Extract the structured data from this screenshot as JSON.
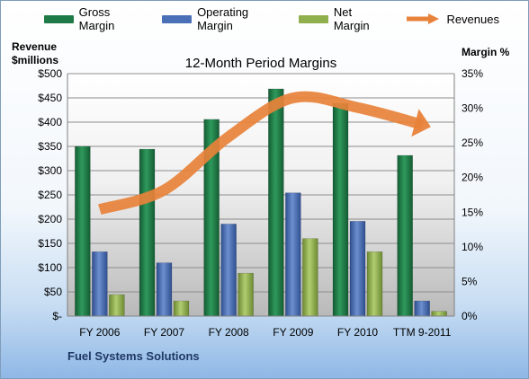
{
  "legend": {
    "gross": "Gross Margin",
    "operating": "Operating Margin",
    "net": "Net Margin",
    "revenues": "Revenues"
  },
  "axis_titles": {
    "left_line1": "Revenue",
    "left_line2": "$millions",
    "right": "Margin %"
  },
  "footer": {
    "company": "Fuel Systems Solutions"
  },
  "colors": {
    "gross": "#1e7a46",
    "operating": "#4a70b8",
    "net": "#8fb04c",
    "revenues": "#e8823a"
  },
  "chart_data": {
    "type": "bar",
    "title": "12-Month Period Margins",
    "categories": [
      "FY 2006",
      "FY 2007",
      "FY 2008",
      "FY 2009",
      "FY 2010",
      "TTM 9-2011"
    ],
    "y_left": {
      "label": "Revenue $millions",
      "ylim": [
        0,
        500
      ],
      "ticks": [
        "$-",
        "$50",
        "$100",
        "$150",
        "$200",
        "$250",
        "$300",
        "$350",
        "$400",
        "$450",
        "$500"
      ]
    },
    "y_right": {
      "label": "Margin %",
      "ylim": [
        0,
        35
      ],
      "ticks": [
        "0%",
        "5%",
        "10%",
        "15%",
        "20%",
        "25%",
        "30%",
        "35%"
      ]
    },
    "series": [
      {
        "name": "Gross Margin",
        "axis": "right",
        "values": [
          24.5,
          24.1,
          28.4,
          32.8,
          30.7,
          23.2
        ]
      },
      {
        "name": "Operating Margin",
        "axis": "right",
        "values": [
          9.3,
          7.7,
          13.3,
          17.8,
          13.7,
          2.2
        ]
      },
      {
        "name": "Net Margin",
        "axis": "right",
        "values": [
          3.1,
          2.2,
          6.2,
          11.2,
          9.3,
          0.7
        ]
      },
      {
        "name": "Revenues",
        "type": "line",
        "axis": "left",
        "values": [
          220,
          260,
          370,
          450,
          430,
          395
        ]
      }
    ],
    "grid": true,
    "legend_position": "top"
  }
}
